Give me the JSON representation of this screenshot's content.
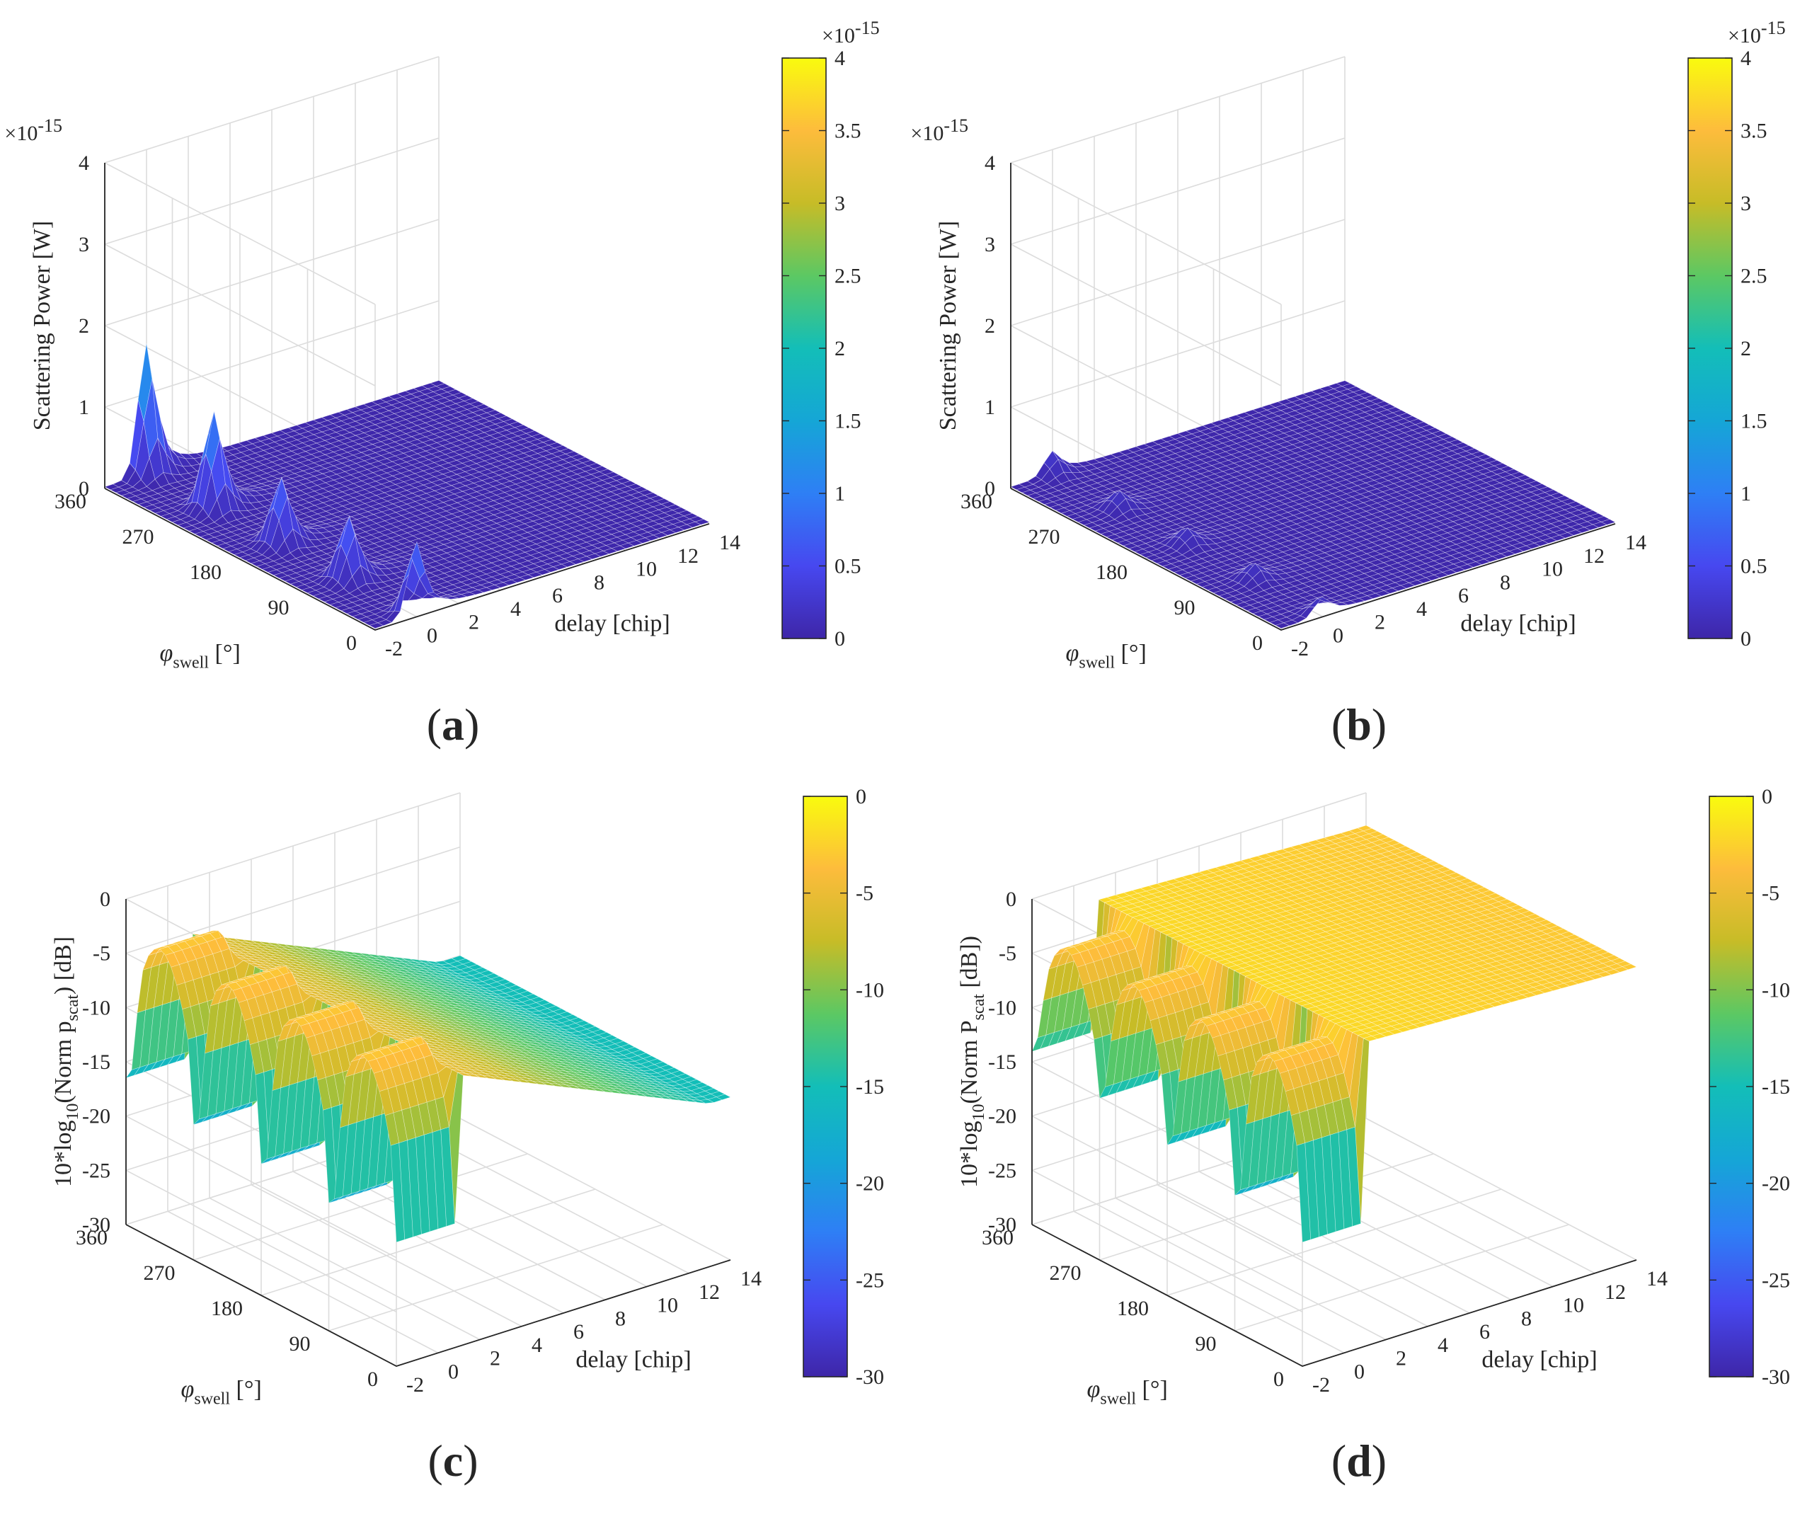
{
  "chart_data": [
    {
      "panel": "a",
      "type": "surface",
      "panel_label": "(a)",
      "zlabel": "Scattering Power [W]",
      "z_multiplier": "×10",
      "z_exponent": "-15",
      "xlabel": "delay [chip]",
      "ylabel_symbol": "φ",
      "ylabel_sub": "swell",
      "ylabel_unit": " [°]",
      "x_ticks": [
        "-2",
        "0",
        "2",
        "4",
        "6",
        "8",
        "10",
        "12",
        "14"
      ],
      "y_ticks": [
        "0",
        "90",
        "180",
        "270",
        "360"
      ],
      "z_ticks": [
        "0",
        "1",
        "2",
        "3",
        "4"
      ],
      "xlim": [
        -2,
        14
      ],
      "ylim": [
        0,
        360
      ],
      "zlim": [
        0,
        4
      ],
      "colorbar_ticks": [
        "0",
        "0.5",
        "1",
        "1.5",
        "2",
        "2.5",
        "3",
        "3.5",
        "4"
      ],
      "colorbar_exponent": "-15",
      "clim": [
        0,
        4
      ],
      "grid": true,
      "colormap": "parula",
      "peaks": [
        {
          "phi": 360,
          "delay": 0,
          "value": 1.6
        },
        {
          "phi": 270,
          "delay": 0,
          "value": 1.2
        },
        {
          "phi": 180,
          "delay": 0,
          "value": 0.82
        },
        {
          "phi": 90,
          "delay": 0,
          "value": 0.78
        },
        {
          "phi": 0,
          "delay": 0,
          "value": 0.9
        }
      ],
      "floor_value": 0.0
    },
    {
      "panel": "b",
      "type": "surface",
      "panel_label": "(b)",
      "zlabel": "Scattering Power [W]",
      "z_multiplier": "×10",
      "z_exponent": "-15",
      "xlabel": "delay [chip]",
      "ylabel_symbol": "φ",
      "ylabel_sub": "swell",
      "ylabel_unit": " [°]",
      "x_ticks": [
        "-2",
        "0",
        "2",
        "4",
        "6",
        "8",
        "10",
        "12",
        "14"
      ],
      "y_ticks": [
        "0",
        "90",
        "180",
        "270",
        "360"
      ],
      "z_ticks": [
        "0",
        "1",
        "2",
        "3",
        "4"
      ],
      "xlim": [
        -2,
        14
      ],
      "ylim": [
        0,
        360
      ],
      "zlim": [
        0,
        4
      ],
      "colorbar_ticks": [
        "0",
        "0.5",
        "1",
        "1.5",
        "2",
        "2.5",
        "3",
        "3.5",
        "4"
      ],
      "colorbar_exponent": "-15",
      "clim": [
        0,
        4
      ],
      "grid": true,
      "colormap": "parula",
      "peaks": [
        {
          "phi": 360,
          "delay": 0,
          "value": 0.28
        },
        {
          "phi": 270,
          "delay": 0,
          "value": 0.22
        },
        {
          "phi": 180,
          "delay": 0,
          "value": 0.2
        },
        {
          "phi": 90,
          "delay": 0,
          "value": 0.2
        },
        {
          "phi": 0,
          "delay": 0,
          "value": 0.22
        }
      ],
      "floor_value": 0.0
    },
    {
      "panel": "c",
      "type": "surface",
      "panel_label": "(c)",
      "zlabel_pre": "10*log",
      "zlabel_sub1": "10",
      "zlabel_mid": "(Norm p",
      "zlabel_sub2": "scat",
      "zlabel_post": ") [dB]",
      "xlabel": "delay [chip]",
      "ylabel_symbol": "φ",
      "ylabel_sub": "swell",
      "ylabel_unit": " [°]",
      "x_ticks": [
        "-2",
        "0",
        "2",
        "4",
        "6",
        "8",
        "10",
        "12",
        "14"
      ],
      "y_ticks": [
        "0",
        "90",
        "180",
        "270",
        "360"
      ],
      "z_ticks": [
        "-30",
        "-25",
        "-20",
        "-15",
        "-10",
        "-5",
        "0"
      ],
      "xlim": [
        -2,
        14
      ],
      "ylim": [
        0,
        360
      ],
      "zlim": [
        -30,
        0
      ],
      "colorbar_ticks": [
        "-30",
        "-25",
        "-20",
        "-15",
        "-10",
        "-5",
        "0"
      ],
      "clim": [
        -30,
        0
      ],
      "grid": true,
      "colormap": "parula",
      "dips": [
        {
          "phi": 360,
          "delay": -1.3,
          "value": -23
        },
        {
          "phi": 270,
          "delay": -1.3,
          "value": -26
        },
        {
          "phi": 180,
          "delay": -1.3,
          "value": -27
        },
        {
          "phi": 90,
          "delay": -1.3,
          "value": -28
        },
        {
          "phi": 0,
          "delay": -1.3,
          "value": -29
        }
      ],
      "ridge_value": 0,
      "tail_value_near": -5,
      "tail_value_far": -15
    },
    {
      "panel": "d",
      "type": "surface",
      "panel_label": "(d)",
      "zlabel_pre": "10*log",
      "zlabel_sub1": "10",
      "zlabel_mid": "(Norm P",
      "zlabel_sub2": "scat",
      "zlabel_post": " [dB])",
      "xlabel": "delay [chip]",
      "ylabel_symbol": "φ",
      "ylabel_sub": "swell",
      "ylabel_unit": " [°]",
      "x_ticks": [
        "-2",
        "0",
        "2",
        "4",
        "6",
        "8",
        "10",
        "12",
        "14"
      ],
      "y_ticks": [
        "0",
        "90",
        "180",
        "270",
        "360"
      ],
      "z_ticks": [
        "-30",
        "-25",
        "-20",
        "-15",
        "-10",
        "-5",
        "0"
      ],
      "xlim": [
        -2,
        14
      ],
      "ylim": [
        0,
        360
      ],
      "zlim": [
        -30,
        0
      ],
      "colorbar_ticks": [
        "-30",
        "-25",
        "-20",
        "-15",
        "-10",
        "-5",
        "0"
      ],
      "clim": [
        -30,
        0
      ],
      "grid": true,
      "colormap": "parula",
      "dips": [
        {
          "phi": 360,
          "delay": -1.3,
          "value": -16
        },
        {
          "phi": 270,
          "delay": -1.3,
          "value": -19
        },
        {
          "phi": 180,
          "delay": -1.3,
          "value": -22
        },
        {
          "phi": 90,
          "delay": -1.3,
          "value": -26
        },
        {
          "phi": 0,
          "delay": -1.3,
          "value": -29
        }
      ],
      "ridge_value": 0,
      "tail_value_near": -2,
      "tail_value_far": -3
    }
  ]
}
